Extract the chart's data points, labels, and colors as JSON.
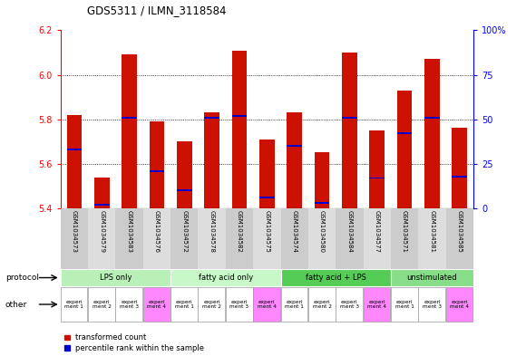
{
  "title": "GDS5311 / ILMN_3118584",
  "samples": [
    "GSM1034573",
    "GSM1034579",
    "GSM1034583",
    "GSM1034576",
    "GSM1034572",
    "GSM1034578",
    "GSM1034582",
    "GSM1034575",
    "GSM1034574",
    "GSM1034580",
    "GSM1034584",
    "GSM1034577",
    "GSM1034571",
    "GSM1034581",
    "GSM1034585"
  ],
  "transformed_count": [
    5.82,
    5.54,
    6.09,
    5.79,
    5.7,
    5.83,
    6.11,
    5.71,
    5.83,
    5.65,
    6.1,
    5.75,
    5.93,
    6.07,
    5.76
  ],
  "percentile_rank": [
    33,
    2,
    51,
    21,
    10,
    51,
    52,
    6,
    35,
    3,
    51,
    17,
    42,
    51,
    18
  ],
  "bar_bottom": 5.4,
  "ylim_left": [
    5.4,
    6.2
  ],
  "ylim_right": [
    0,
    100
  ],
  "yticks_left": [
    5.4,
    5.6,
    5.8,
    6.0,
    6.2
  ],
  "yticks_right": [
    0,
    25,
    50,
    75,
    100
  ],
  "ytick_right_labels": [
    "0",
    "25",
    "50",
    "75",
    "100%"
  ],
  "bar_color": "#cc1100",
  "marker_color": "#0000cc",
  "protocols": [
    {
      "label": "LPS only",
      "start": 0,
      "end": 4,
      "color": "#b8f0b8"
    },
    {
      "label": "fatty acid only",
      "start": 4,
      "end": 8,
      "color": "#c8f8c8"
    },
    {
      "label": "fatty acid + LPS",
      "start": 8,
      "end": 12,
      "color": "#55cc55"
    },
    {
      "label": "unstimulated",
      "start": 12,
      "end": 15,
      "color": "#88dd88"
    }
  ],
  "experiment_labels": [
    "experi\nment 1",
    "experi\nment 2",
    "experi\nment 3",
    "experi\nment 4",
    "experi\nment 1",
    "experi\nment 2",
    "experi\nment 3",
    "experi\nment 4",
    "experi\nment 1",
    "experi\nment 2",
    "experi\nment 3",
    "experi\nment 4",
    "experi\nment 1",
    "experi\nment 3",
    "experi\nment 4"
  ],
  "experiment_colors": [
    "#ffffff",
    "#ffffff",
    "#ffffff",
    "#ff88ff",
    "#ffffff",
    "#ffffff",
    "#ffffff",
    "#ff88ff",
    "#ffffff",
    "#ffffff",
    "#ffffff",
    "#ff88ff",
    "#ffffff",
    "#ffffff",
    "#ff88ff"
  ],
  "legend_items": [
    {
      "label": "transformed count",
      "color": "#cc1100"
    },
    {
      "label": "percentile rank within the sample",
      "color": "#0000cc"
    }
  ],
  "bg_color": "#ffffff",
  "panel_bg": "#cccccc"
}
